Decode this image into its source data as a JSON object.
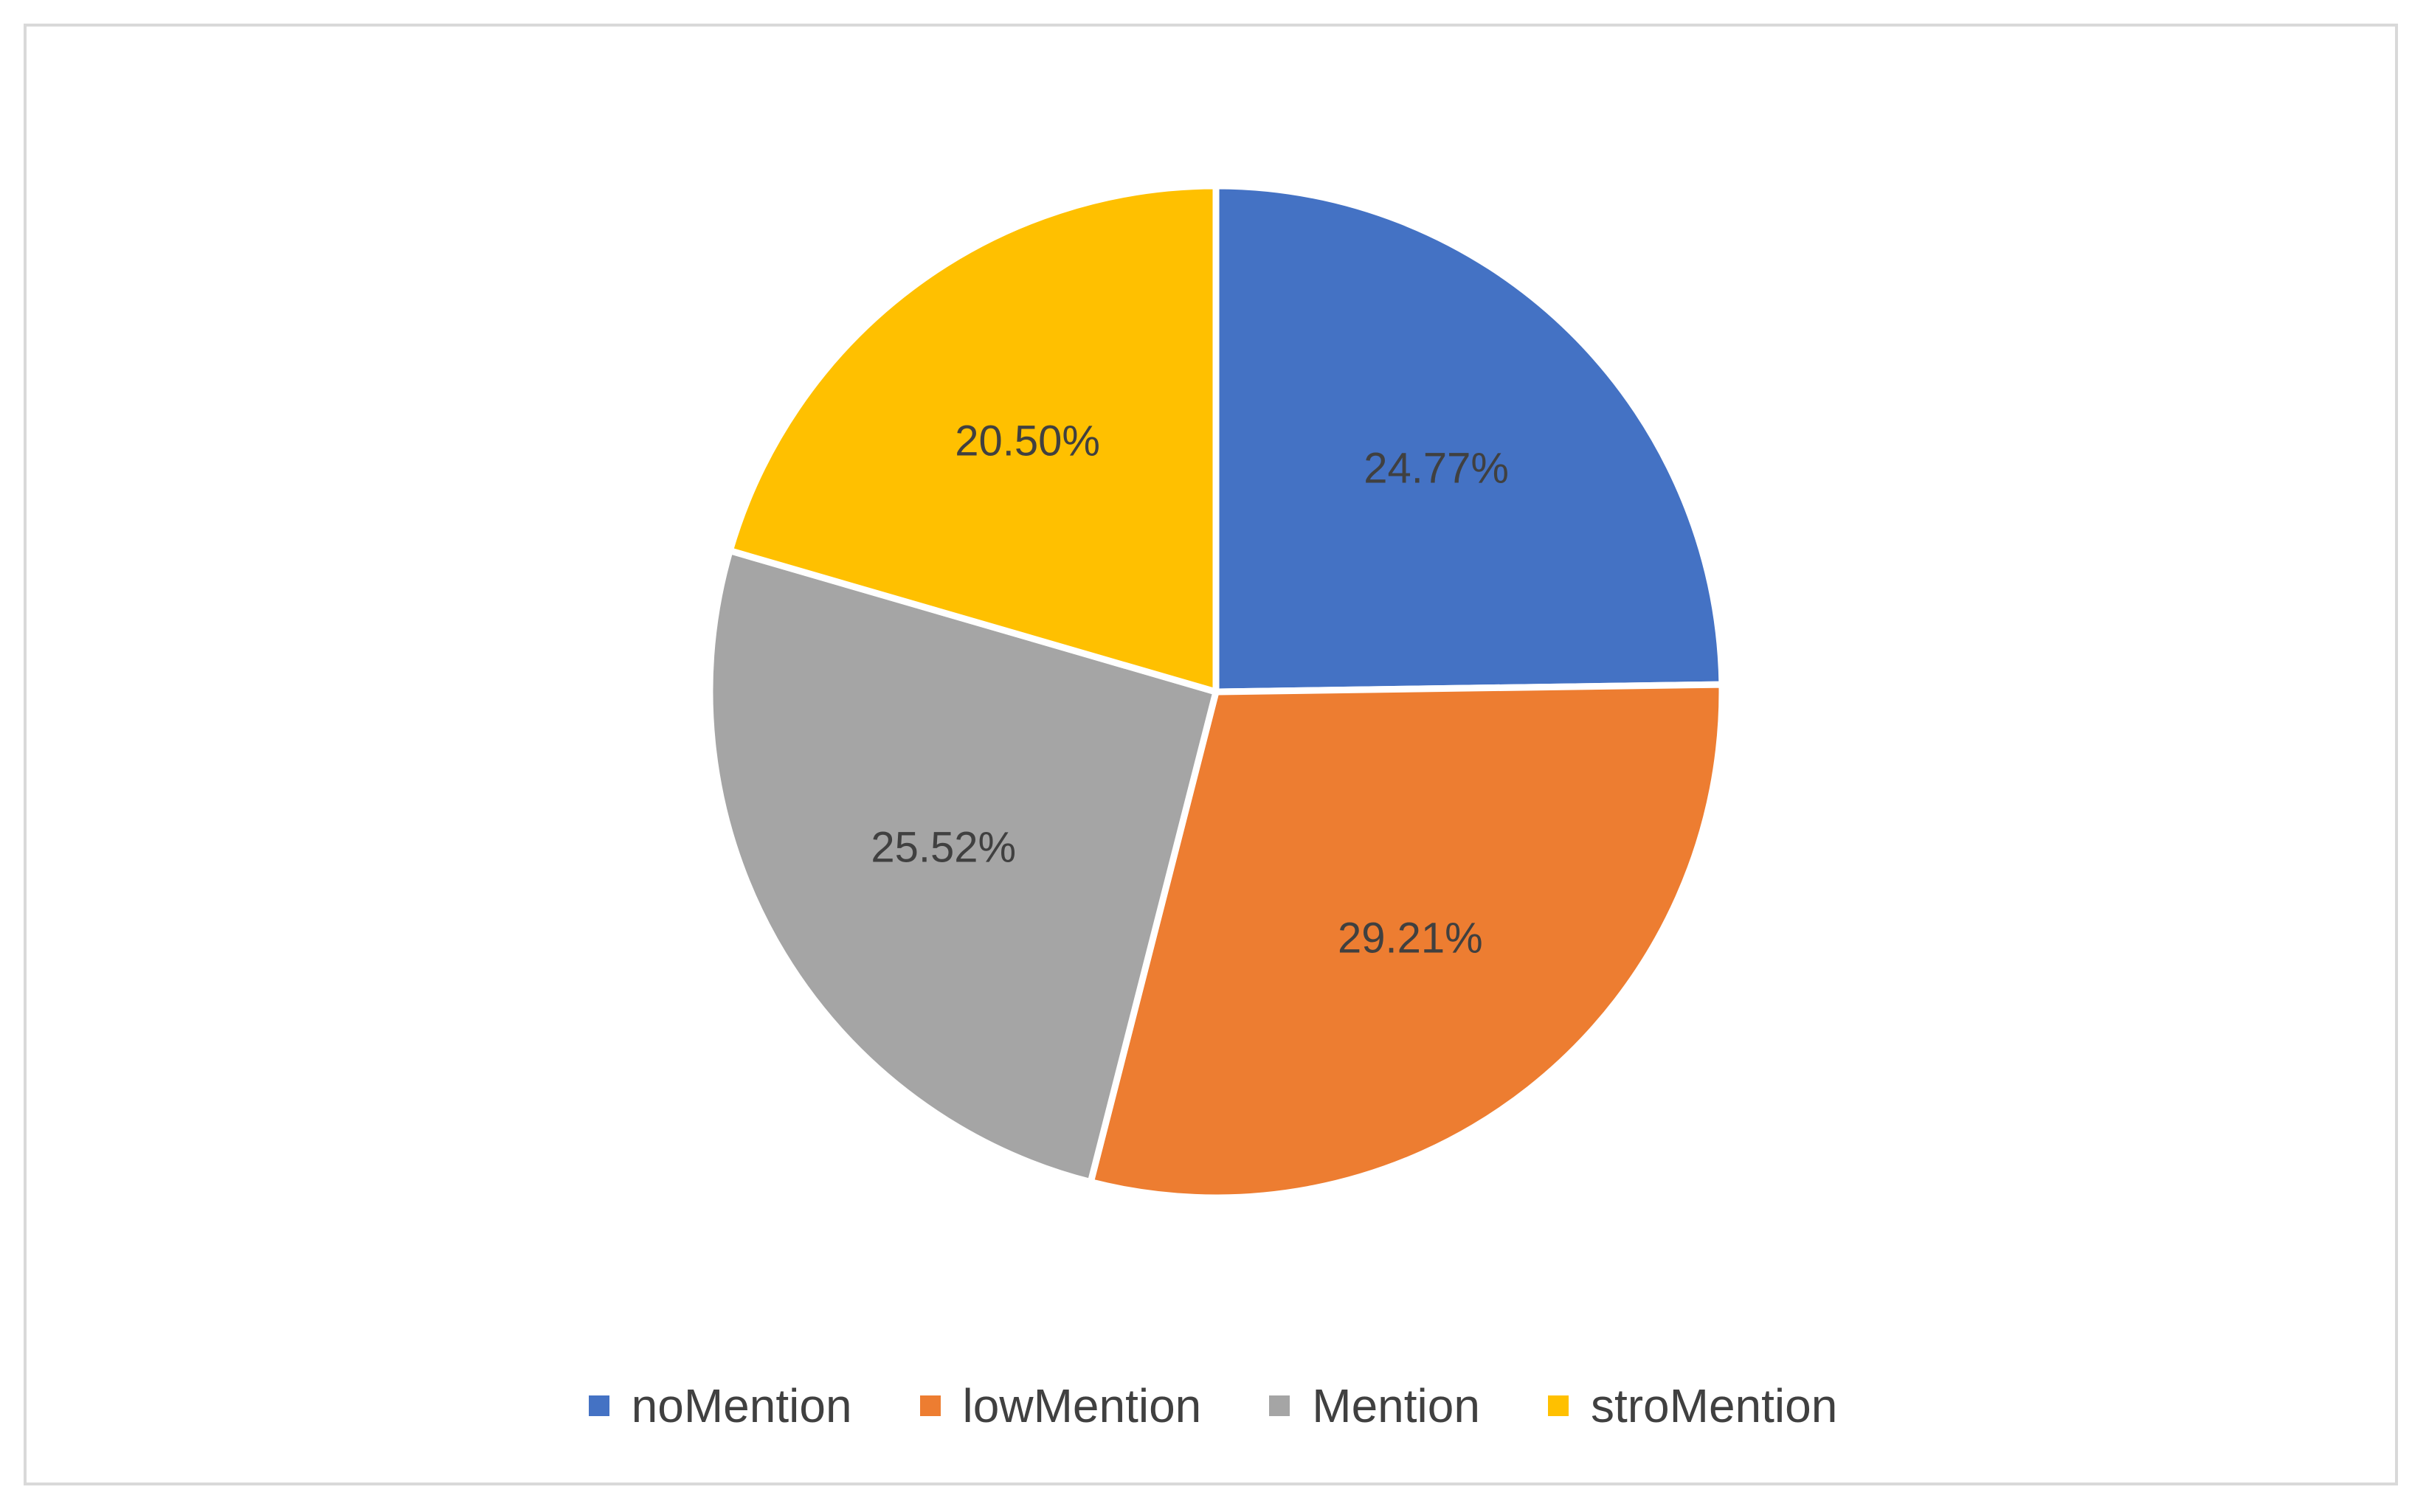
{
  "chart_data": {
    "type": "pie",
    "title": "",
    "categories": [
      "noMention",
      "lowMention",
      "Mention",
      "stroMention"
    ],
    "values": [
      24.77,
      29.21,
      25.52,
      20.5
    ],
    "labels": [
      "24.77%",
      "29.21%",
      "25.52%",
      "20.50%"
    ],
    "colors": [
      "#4472C4",
      "#ED7D31",
      "#A5A5A5",
      "#FFC000"
    ],
    "start_angle": "12 o'clock",
    "direction": "clockwise",
    "legend_position": "bottom"
  }
}
